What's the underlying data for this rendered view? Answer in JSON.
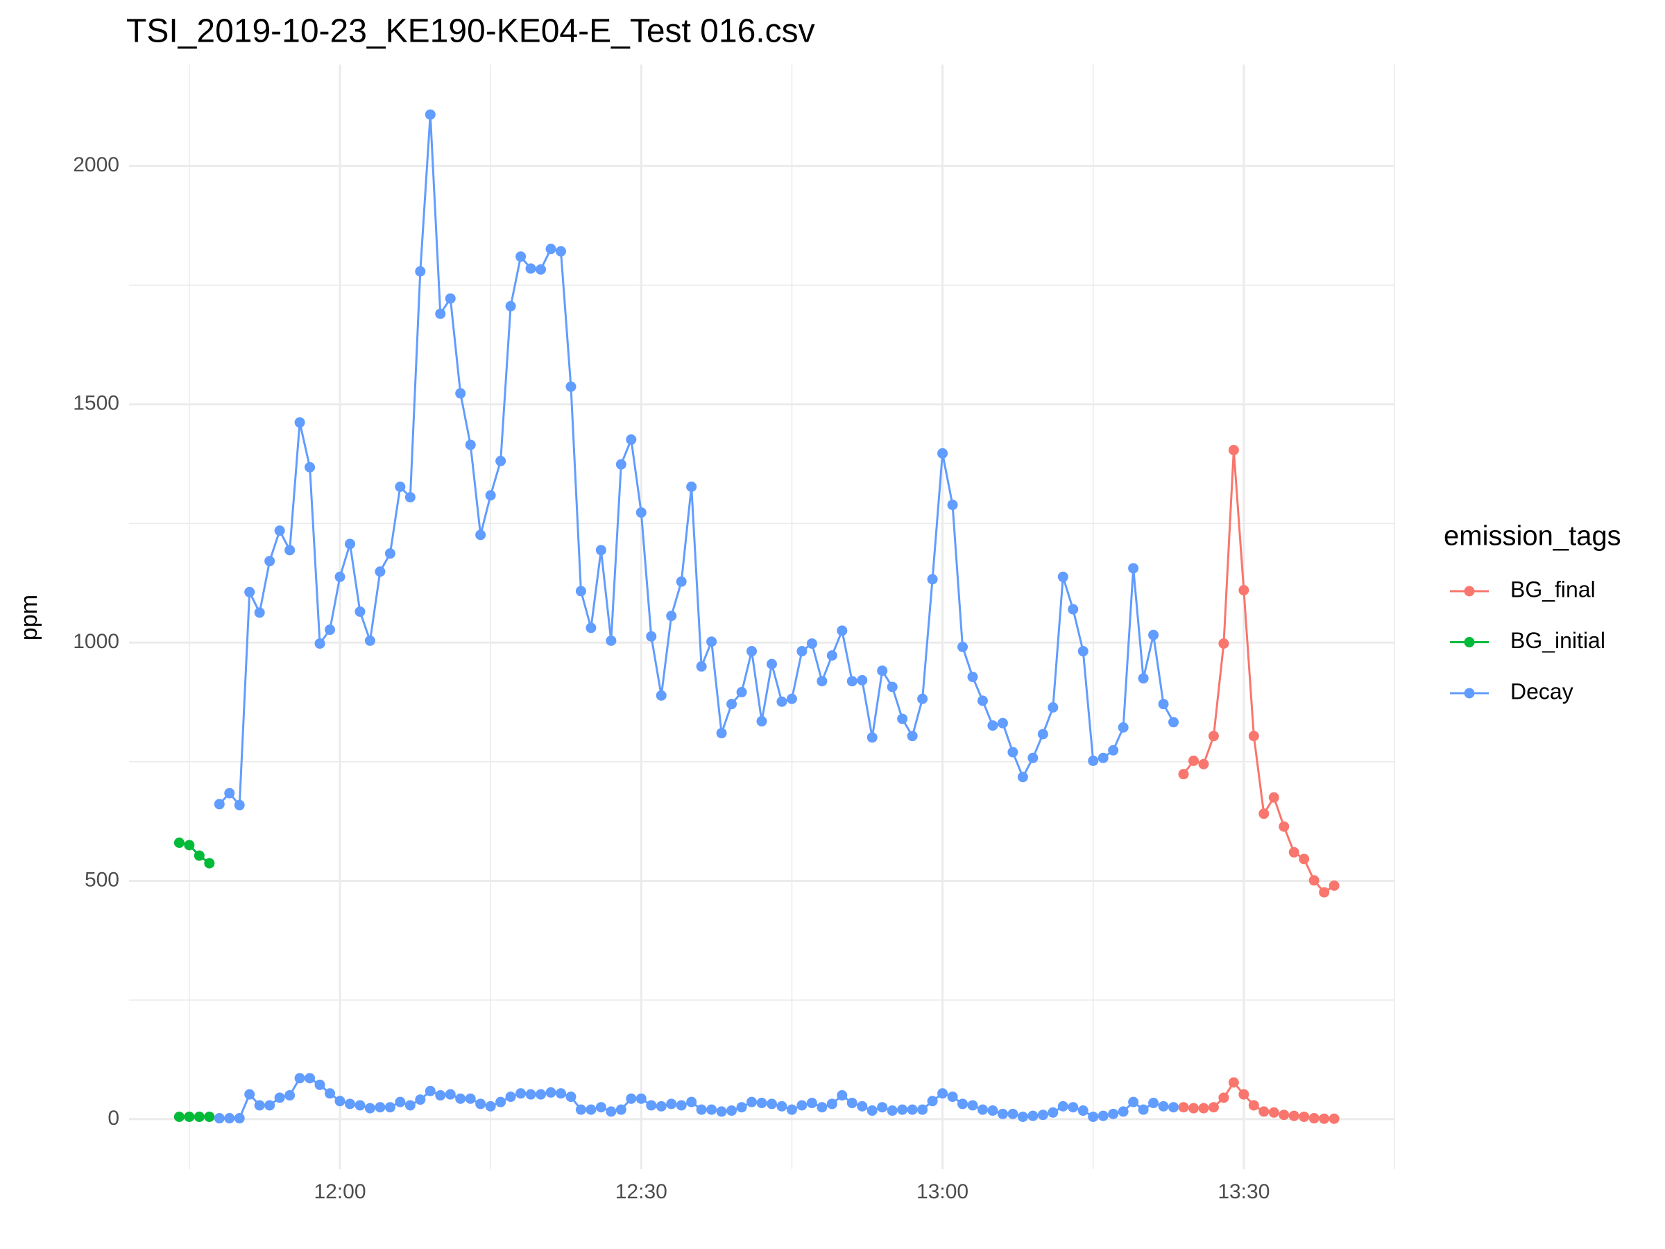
{
  "chart_data": {
    "type": "line",
    "title": "TSI_2019-10-23_KE190-KE04-E_Test 016.csv",
    "y_label": "ppm",
    "legend_title": "emission_tags",
    "legend_position": "right",
    "grid": true,
    "markers": true,
    "xlim": [
      "11:39",
      "13:45"
    ],
    "xticks": [
      "12:00",
      "12:30",
      "13:00",
      "13:30"
    ],
    "ylim": [
      -105,
      2213
    ],
    "yticks": [
      0,
      500,
      1000,
      1500,
      2000
    ],
    "series": [
      {
        "name": "BG_final",
        "color": "#F8766D",
        "x": [
          "13:24",
          "13:25",
          "13:26",
          "13:27",
          "13:28",
          "13:29",
          "13:30",
          "13:31",
          "13:32",
          "13:33",
          "13:34",
          "13:35",
          "13:36",
          "13:37",
          "13:38",
          "13:39"
        ],
        "values": [
          724,
          752,
          745,
          804,
          998,
          1404,
          1110,
          804,
          641,
          675,
          614,
          560,
          546,
          501,
          476,
          490
        ],
        "values_low": [
          25,
          23,
          23,
          25,
          45,
          77,
          52,
          29,
          16,
          14,
          9,
          7,
          5,
          2,
          1,
          1
        ]
      },
      {
        "name": "BG_initial",
        "color": "#00BA38",
        "x": [
          "11:44",
          "11:45",
          "11:46",
          "11:47"
        ],
        "values": [
          580,
          575,
          553,
          537
        ],
        "values_low": [
          5,
          5,
          5,
          5
        ]
      },
      {
        "name": "Decay",
        "color": "#619CFF",
        "x": [
          "11:48",
          "11:49",
          "11:50",
          "11:51",
          "11:52",
          "11:53",
          "11:54",
          "11:55",
          "11:56",
          "11:57",
          "11:58",
          "11:59",
          "12:00",
          "12:01",
          "12:02",
          "12:03",
          "12:04",
          "12:05",
          "12:06",
          "12:07",
          "12:08",
          "12:09",
          "12:10",
          "12:11",
          "12:12",
          "12:13",
          "12:14",
          "12:15",
          "12:16",
          "12:17",
          "12:18",
          "12:19",
          "12:20",
          "12:21",
          "12:22",
          "12:23",
          "12:24",
          "12:25",
          "12:26",
          "12:27",
          "12:28",
          "12:29",
          "12:30",
          "12:31",
          "12:32",
          "12:33",
          "12:34",
          "12:35",
          "12:36",
          "12:37",
          "12:38",
          "12:39",
          "12:40",
          "12:41",
          "12:42",
          "12:43",
          "12:44",
          "12:45",
          "12:46",
          "12:47",
          "12:48",
          "12:49",
          "12:50",
          "12:51",
          "12:52",
          "12:53",
          "12:54",
          "12:55",
          "12:56",
          "12:57",
          "12:58",
          "12:59",
          "13:00",
          "13:01",
          "13:02",
          "13:03",
          "13:04",
          "13:05",
          "13:06",
          "13:07",
          "13:08",
          "13:09",
          "13:10",
          "13:11",
          "13:12",
          "13:13",
          "13:14",
          "13:15",
          "13:16",
          "13:17",
          "13:18",
          "13:19",
          "13:20",
          "13:21",
          "13:22",
          "13:23"
        ],
        "values": [
          661,
          684,
          659,
          1106,
          1063,
          1171,
          1235,
          1194,
          1462,
          1368,
          998,
          1027,
          1138,
          1207,
          1065,
          1004,
          1149,
          1187,
          1327,
          1305,
          1779,
          2108,
          1690,
          1722,
          1523,
          1415,
          1226,
          1309,
          1381,
          1706,
          1810,
          1785,
          1783,
          1826,
          1821,
          1537,
          1108,
          1031,
          1194,
          1004,
          1374,
          1426,
          1273,
          1013,
          889,
          1056,
          1128,
          1327,
          950,
          1002,
          810,
          871,
          896,
          982,
          835,
          955,
          876,
          882,
          982,
          998,
          919,
          973,
          1025,
          919,
          921,
          801,
          941,
          907,
          840,
          804,
          882,
          1133,
          1397,
          1289,
          991,
          928,
          878,
          826,
          831,
          770,
          718,
          758,
          808,
          864,
          1138,
          1070,
          982,
          752,
          758,
          774,
          822,
          1156,
          925,
          1016,
          871,
          833
        ],
        "values_low": [
          2,
          2,
          2,
          52,
          29,
          29,
          45,
          50,
          86,
          86,
          72,
          54,
          38,
          32,
          29,
          23,
          25,
          25,
          36,
          29,
          41,
          59,
          50,
          52,
          43,
          43,
          32,
          27,
          36,
          47,
          54,
          52,
          52,
          56,
          54,
          47,
          20,
          20,
          25,
          16,
          20,
          43,
          43,
          29,
          27,
          32,
          29,
          36,
          20,
          20,
          16,
          18,
          25,
          36,
          34,
          32,
          27,
          20,
          29,
          34,
          25,
          32,
          50,
          34,
          27,
          18,
          25,
          18,
          20,
          20,
          20,
          38,
          54,
          47,
          32,
          29,
          20,
          18,
          11,
          11,
          5,
          7,
          9,
          14,
          27,
          25,
          18,
          5,
          7,
          11,
          16,
          36,
          20,
          34,
          27,
          25
        ]
      }
    ]
  }
}
